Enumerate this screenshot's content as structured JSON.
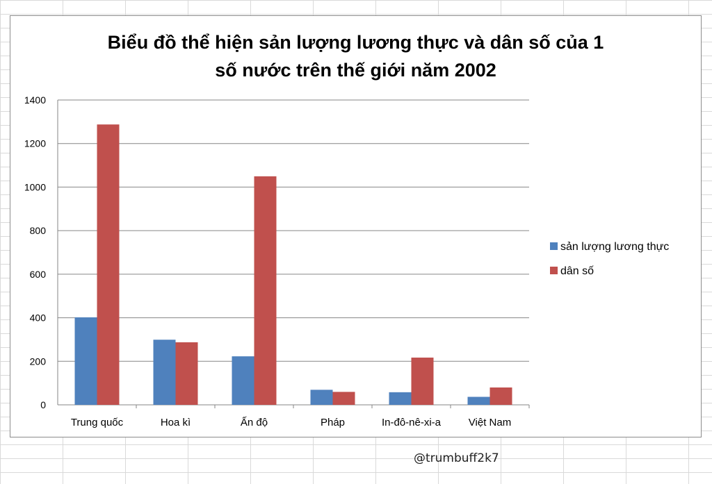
{
  "chart_data": {
    "type": "bar",
    "title_lines": [
      "Biểu đồ thể hiện sản lượng lương thực và dân số của 1",
      "số nước trên thế giới năm 2002"
    ],
    "categories": [
      "Trung quốc",
      "Hoa kì",
      "Ấn độ",
      "Pháp",
      "In-đô-nê-xi-a",
      "Việt Nam"
    ],
    "series": [
      {
        "name": "sản lượng lương thực",
        "color": "#4f81bd",
        "values": [
          401.8,
          299.1,
          222.8,
          69.1,
          57.9,
          36.7
        ]
      },
      {
        "name": "dân số",
        "color": "#c0504d",
        "values": [
          1287.6,
          287.4,
          1049.5,
          59.5,
          217.0,
          79.7
        ]
      }
    ],
    "ylim": [
      0,
      1400
    ],
    "yticks": [
      0,
      200,
      400,
      600,
      800,
      1000,
      1200,
      1400
    ],
    "grid": true,
    "legend_position": "right"
  },
  "watermark": "@trumbuff2k7"
}
